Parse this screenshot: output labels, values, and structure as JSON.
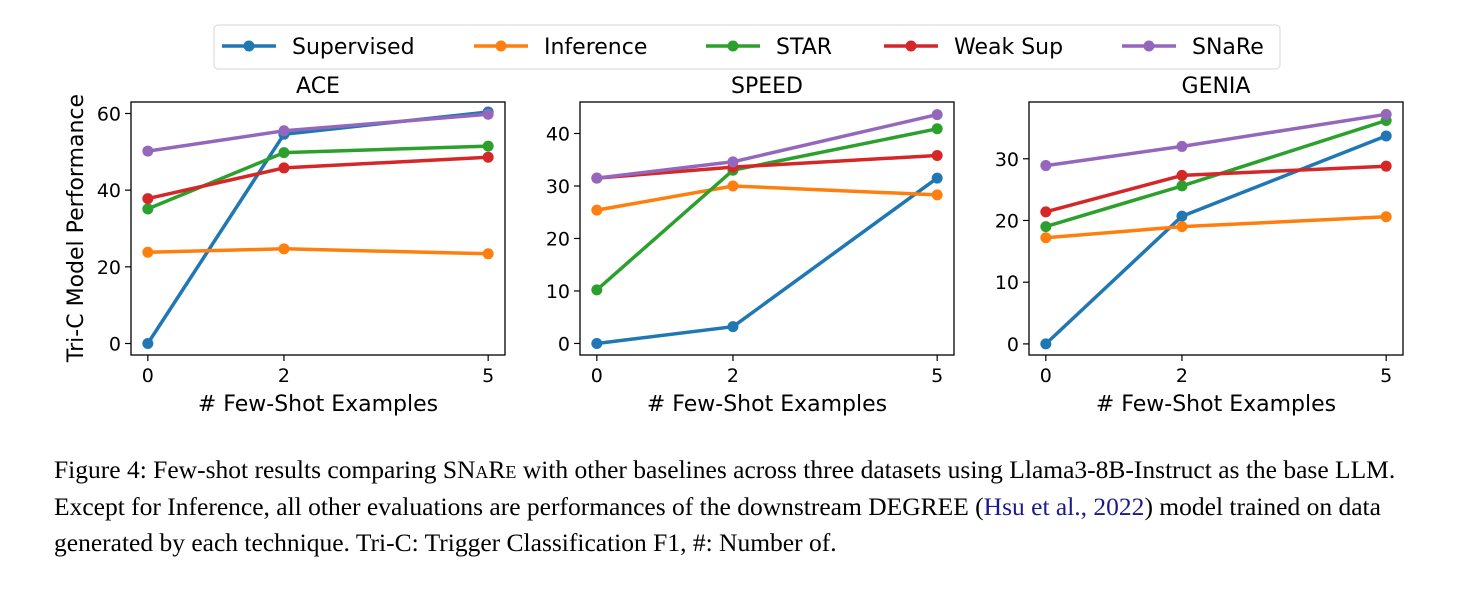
{
  "legend": {
    "placement": "top-center",
    "entries": [
      "Supervised",
      "Inference",
      "STAR",
      "Weak Sup",
      "SNaRe"
    ]
  },
  "colors": {
    "Supervised": "#1f77b4",
    "Inference": "#ff7f0e",
    "STAR": "#2ca02c",
    "Weak Sup": "#d62728",
    "SNaRe": "#9467bd"
  },
  "shared": {
    "xlabel": "# Few-Shot Examples",
    "ylabel": "Tri-C Model Performance"
  },
  "chart_data": [
    {
      "type": "line",
      "title": "ACE",
      "xlabel": "# Few-Shot Examples",
      "ylabel": "Tri-C Model Performance",
      "x": [
        0,
        2,
        5
      ],
      "xticks": [
        0,
        2,
        5
      ],
      "yticks": [
        0,
        20,
        40,
        60
      ],
      "ylim": [
        -3,
        63
      ],
      "grid": false,
      "series": [
        {
          "name": "Supervised",
          "values": [
            0,
            54.6,
            60.4
          ]
        },
        {
          "name": "Inference",
          "values": [
            23.8,
            24.7,
            23.4
          ]
        },
        {
          "name": "STAR",
          "values": [
            35.1,
            49.8,
            51.5
          ]
        },
        {
          "name": "Weak Sup",
          "values": [
            37.8,
            45.8,
            48.6
          ]
        },
        {
          "name": "SNaRe",
          "values": [
            50.2,
            55.5,
            59.8
          ]
        }
      ]
    },
    {
      "type": "line",
      "title": "SPEED",
      "xlabel": "# Few-Shot Examples",
      "ylabel": "",
      "x": [
        0,
        2,
        5
      ],
      "xticks": [
        0,
        2,
        5
      ],
      "yticks": [
        0,
        10,
        20,
        30,
        40
      ],
      "ylim": [
        -2.2,
        46
      ],
      "grid": false,
      "series": [
        {
          "name": "Supervised",
          "values": [
            0,
            3.2,
            31.5
          ]
        },
        {
          "name": "Inference",
          "values": [
            25.4,
            30.0,
            28.3
          ]
        },
        {
          "name": "STAR",
          "values": [
            10.2,
            33.0,
            40.9
          ]
        },
        {
          "name": "Weak Sup",
          "values": [
            31.5,
            33.6,
            35.8
          ]
        },
        {
          "name": "SNaRe",
          "values": [
            31.5,
            34.6,
            43.6
          ]
        }
      ]
    },
    {
      "type": "line",
      "title": "GENIA",
      "xlabel": "# Few-Shot Examples",
      "ylabel": "",
      "x": [
        0,
        2,
        5
      ],
      "xticks": [
        0,
        2,
        5
      ],
      "yticks": [
        0,
        10,
        20,
        30
      ],
      "ylim": [
        -1.8,
        39.2
      ],
      "grid": false,
      "series": [
        {
          "name": "Supervised",
          "values": [
            0,
            20.7,
            33.7
          ]
        },
        {
          "name": "Inference",
          "values": [
            17.2,
            19.0,
            20.6
          ]
        },
        {
          "name": "STAR",
          "values": [
            19.0,
            25.6,
            36.2
          ]
        },
        {
          "name": "Weak Sup",
          "values": [
            21.4,
            27.3,
            28.8
          ]
        },
        {
          "name": "SNaRe",
          "values": [
            28.9,
            32.0,
            37.2
          ]
        }
      ]
    }
  ],
  "caption": {
    "part1": "Figure 4: Few-shot results comparing ",
    "snare_sc": "SNaRe",
    "part2": " with other baselines across three datasets using Llama3-8B-Instruct as the base LLM. Except for Inference, all other evaluations are performances of the downstream DEGREE (",
    "cite": "Hsu et al., 2022",
    "part3": ") model trained on data generated by each technique. Tri-C: Trigger Classification F1, #: Number of."
  }
}
